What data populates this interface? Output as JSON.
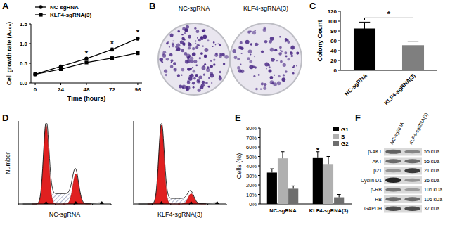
{
  "panel_labels": [
    "A",
    "B",
    "C",
    "D",
    "E",
    "F"
  ],
  "chart_data": [
    {
      "type": "line",
      "x_label": "Time (hours)",
      "y_label": "Cell growth rate (A₄₅₀)",
      "x": [
        0,
        24,
        48,
        72,
        96
      ],
      "xlim": [
        -4,
        100
      ],
      "xticks": [
        0,
        24,
        48,
        72,
        96
      ],
      "ylim": [
        0,
        1.5
      ],
      "yticks": [
        {
          "value": 0,
          "label": "0.0"
        },
        {
          "value": 0.5,
          "label": "0.5"
        },
        {
          "value": 1,
          "label": "1.0"
        },
        {
          "value": 1.5,
          "label": "1.5"
        }
      ],
      "grid": false,
      "legend": "upper left",
      "series": [
        {
          "name": "NC-sgRNA",
          "color": "#000000",
          "marker": "circle",
          "line_style": "solid",
          "values": [
            0.22,
            0.42,
            0.62,
            0.85,
            1.13
          ],
          "errors": [
            0.01,
            0.02,
            0.03,
            0.04,
            0.04
          ]
        },
        {
          "name": "KLF4-sgRNA(3)",
          "color": "#000000",
          "marker": "square",
          "line_style": "solid",
          "values": [
            0.22,
            0.35,
            0.52,
            0.63,
            0.76
          ],
          "errors": [
            0.01,
            0.02,
            0.02,
            0.03,
            0.04
          ]
        }
      ],
      "annotations": [
        {
          "text": "*",
          "x": 48
        },
        {
          "text": "*",
          "x": 72
        },
        {
          "text": "*",
          "x": 96
        }
      ]
    },
    {
      "type": "bar",
      "y_label": "Colony Count",
      "categories": [
        "NC-sgRNA",
        "KLF4-sgRNA(3)"
      ],
      "values": [
        85,
        51
      ],
      "errors": [
        13,
        8
      ],
      "colors": [
        "#000000",
        "#7f7f7f"
      ],
      "ylim": [
        0,
        120
      ],
      "yticks": [
        0,
        20,
        40,
        60,
        80,
        100,
        120
      ],
      "grid": false,
      "annotations": [
        {
          "text": "*"
        }
      ]
    },
    {
      "type": "bar",
      "y_label": "Cells (%)",
      "categories": [
        "NC-sgRNA",
        "KLF4-sgRNA(3)"
      ],
      "series": [
        {
          "name": "G1",
          "color": "#000000",
          "values": [
            33,
            49
          ],
          "errors": [
            4,
            6
          ]
        },
        {
          "name": "S",
          "color": "#b0b0b0",
          "values": [
            48,
            42
          ],
          "errors": [
            7,
            8
          ]
        },
        {
          "name": "G2",
          "color": "#6e6e6e",
          "values": [
            16,
            7
          ],
          "errors": [
            3,
            3
          ]
        }
      ],
      "ylim": [
        0,
        80
      ],
      "yticks": [
        {
          "value": 0,
          "label": "0%"
        },
        {
          "value": 10,
          "label": "10%"
        },
        {
          "value": 20,
          "label": "20%"
        },
        {
          "value": 30,
          "label": "30%"
        },
        {
          "value": 40,
          "label": "40%"
        },
        {
          "value": 50,
          "label": "50%"
        },
        {
          "value": 60,
          "label": "60%"
        },
        {
          "value": 70,
          "label": "70%"
        },
        {
          "value": 80,
          "label": "80%"
        }
      ],
      "grid": false,
      "legend": "upper right",
      "annotations": [
        {
          "text": "*",
          "series": 0,
          "category": 1
        }
      ]
    }
  ],
  "colony_plates": {
    "labels": [
      "NC-sgRNA",
      "KLF4-sgRNA(3)"
    ]
  },
  "histograms": {
    "y_label": "Number",
    "labels": [
      "NC-sgRNA",
      "KLF4-sgRNA(3)"
    ]
  },
  "blot": {
    "columns": [
      "NC-sgRNA",
      "KLF4-sgRNA(3)"
    ],
    "rows": [
      {
        "name": "p-AKT",
        "size": "55 kDa"
      },
      {
        "name": "AKT",
        "size": "55 kDa"
      },
      {
        "name": "p21",
        "size": "21 kDa"
      },
      {
        "name": "Cyclin D1",
        "size": "36 kDa"
      },
      {
        "name": "p-RB",
        "size": "106 kDa"
      },
      {
        "name": "RB",
        "size": "106 kDa"
      },
      {
        "name": "GAPDH",
        "size": "37 kDa"
      }
    ]
  }
}
